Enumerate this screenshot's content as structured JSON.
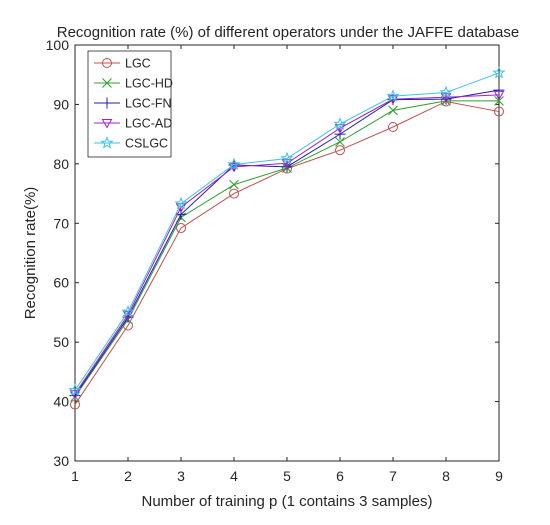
{
  "chart_data": {
    "type": "line",
    "title": "Recognition rate (%) of different operators under the JAFFE database",
    "xlabel": "Number of training p (1 contains 3 samples)",
    "ylabel": "Recognition rate(%)",
    "x": [
      1,
      2,
      3,
      4,
      5,
      6,
      7,
      8,
      9
    ],
    "xlim": [
      1,
      9
    ],
    "ylim": [
      30,
      100
    ],
    "xticks": [
      "1",
      "2",
      "3",
      "4",
      "5",
      "6",
      "7",
      "8",
      "9"
    ],
    "yticks": [
      "30",
      "40",
      "50",
      "60",
      "70",
      "80",
      "90",
      "100"
    ],
    "grid": false,
    "legend_position": "top-left",
    "series": [
      {
        "name": "LGC",
        "color": "#c0504d",
        "marker": "circle",
        "values": [
          39.5,
          52.8,
          69.2,
          75.0,
          79.2,
          82.3,
          86.2,
          90.5,
          88.8
        ]
      },
      {
        "name": "LGC-HD",
        "color": "#2ca02c",
        "marker": "x",
        "values": [
          40.8,
          53.8,
          71.0,
          76.5,
          79.3,
          83.7,
          89.0,
          90.6,
          90.6
        ]
      },
      {
        "name": "LGC-FN",
        "color": "#1f1fa8",
        "marker": "plus",
        "values": [
          41.0,
          54.2,
          71.5,
          79.8,
          79.5,
          85.0,
          90.8,
          90.9,
          92.4
        ]
      },
      {
        "name": "LGC-AD",
        "color": "#a020c8",
        "marker": "triangle-down",
        "values": [
          41.3,
          54.6,
          72.7,
          79.5,
          80.1,
          86.0,
          90.9,
          91.2,
          91.6
        ]
      },
      {
        "name": "CSLGC",
        "color": "#39c3e6",
        "marker": "star",
        "values": [
          41.9,
          55.1,
          73.3,
          79.9,
          80.9,
          86.7,
          91.4,
          92.0,
          95.3
        ]
      }
    ]
  }
}
